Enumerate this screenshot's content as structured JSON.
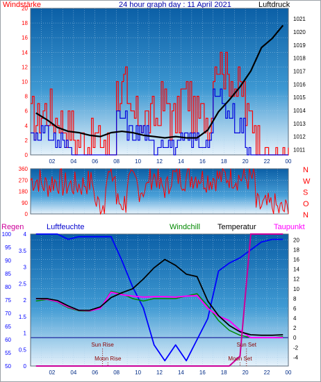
{
  "header": {
    "left": "Windstärke",
    "title": "24 hour graph day : 11 April 2021",
    "right": "Luftdruck"
  },
  "wind_panel": {
    "direction_labels": [
      "N",
      "W",
      "S",
      "O",
      "N"
    ],
    "y_left_ticks": [
      "360",
      "270",
      "180",
      "90",
      "0"
    ]
  },
  "bottom_header": {
    "regen": "Regen",
    "luftfeuchte": "Luftfeuchte",
    "windchill": "Windchill",
    "temperatur": "Temperatur",
    "taupunkt": "Taupunkt"
  },
  "events": {
    "sun_rise": "Sun Rise",
    "sun_set": "Sun Set",
    "moon_rise": "Moon Rise",
    "moon_set": "Moon Set"
  },
  "x_ticks": [
    "02",
    "04",
    "06",
    "08",
    "10",
    "12",
    "14",
    "16",
    "18",
    "20",
    "22",
    "00"
  ],
  "colors": {
    "wind_gust": "#ff0000",
    "wind_avg": "#0000dd",
    "pressure": "#000000",
    "humidity": "#0000ff",
    "temperature": "#000000",
    "windchill": "#008800",
    "dewpoint": "#ff00ff",
    "rain": "#cc0099"
  },
  "chart_data": [
    {
      "type": "line",
      "title": "24 hour graph day : 11 April 2021",
      "ylabel_left": "Windstärke",
      "ylabel_right": "Luftdruck",
      "y_left_ticks": [
        "0",
        "2",
        "4",
        "6",
        "8",
        "10",
        "12",
        "14",
        "16",
        "18",
        "20"
      ],
      "y_right_ticks": [
        "1011",
        "1012",
        "1013",
        "1014",
        "1015",
        "1016",
        "1017",
        "1018",
        "1019",
        "1020",
        "1021"
      ],
      "ylim_left": [
        0,
        20
      ],
      "ylim_right": [
        1010.6,
        1021.8
      ],
      "x": [
        1,
        2,
        3,
        4,
        5,
        6,
        7,
        8,
        9,
        10,
        11,
        12,
        13,
        14,
        15,
        16,
        17,
        18,
        19,
        20,
        21,
        22,
        23,
        24
      ],
      "series": [
        {
          "name": "Luftdruck",
          "axis": "right",
          "values": [
            1013.8,
            1013.3,
            1012.7,
            1012.4,
            1012.3,
            1012.1,
            1012.0,
            1012.3,
            1012.4,
            1012.3,
            1012.1,
            1012.0,
            1011.9,
            1012.0,
            1011.9,
            1011.9,
            1012.5,
            1013.9,
            1014.8,
            1015.8,
            1017.0,
            1018.8,
            1019.5,
            1020.5
          ]
        },
        {
          "name": "Windböen",
          "axis": "left",
          "values": [
            5,
            6,
            5,
            4,
            2,
            2,
            2,
            1,
            9,
            5,
            5,
            5,
            7,
            5,
            8,
            5,
            5,
            13,
            11,
            9,
            5,
            2,
            0,
            0
          ]
        },
        {
          "name": "Wind",
          "axis": "left",
          "values": [
            3,
            3,
            2,
            1,
            0,
            0,
            0,
            0,
            5,
            3,
            3,
            1,
            2,
            1,
            2,
            2,
            2,
            8,
            6,
            4,
            1,
            0,
            0,
            0
          ]
        }
      ]
    },
    {
      "type": "line",
      "ylabel_left": "Windrichtung",
      "y_left_ticks": [
        "0",
        "90",
        "180",
        "270",
        "360"
      ],
      "ylim": [
        0,
        360
      ],
      "direction_labels": [
        "N",
        "W",
        "S",
        "O",
        "N"
      ],
      "x": [
        1,
        2,
        3,
        4,
        5,
        6,
        7,
        8,
        9,
        10,
        11,
        12,
        13,
        14,
        15,
        16,
        17,
        18,
        19,
        20,
        21,
        22,
        23,
        24
      ],
      "series": [
        {
          "name": "Windrichtung",
          "values": [
            270,
            230,
            260,
            230,
            230,
            250,
            80,
            300,
            90,
            250,
            200,
            300,
            210,
            300,
            290,
            300,
            280,
            290,
            300,
            290,
            280,
            60,
            60,
            30
          ]
        }
      ]
    },
    {
      "type": "line",
      "legend": [
        "Regen",
        "Luftfeuchte",
        "Windchill",
        "Temperatur",
        "Taupunkt"
      ],
      "y_regen_ticks": [
        "0",
        "0.5",
        "1",
        "1.5",
        "2",
        "2.5",
        "3",
        "3.5",
        "4"
      ],
      "y_humidity_ticks": [
        "50",
        "55",
        "60",
        "65",
        "70",
        "75",
        "80",
        "85",
        "90",
        "95",
        "100"
      ],
      "y_temp_ticks": [
        "-4",
        "-2",
        "0",
        "2",
        "4",
        "6",
        "8",
        "10",
        "12",
        "14",
        "16",
        "18",
        "20"
      ],
      "ylim_temp": [
        -5.8,
        21.2
      ],
      "x": [
        1,
        2,
        3,
        4,
        5,
        6,
        7,
        8,
        9,
        10,
        11,
        12,
        13,
        14,
        15,
        16,
        17,
        18,
        19,
        20,
        21,
        22,
        23,
        24
      ],
      "series": [
        {
          "name": "Temperatur",
          "values": [
            8.0,
            8.0,
            7.6,
            6.5,
            5.6,
            5.6,
            6.3,
            8.2,
            9.2,
            10.0,
            12.0,
            14.3,
            16.0,
            14.8,
            13.0,
            12.5,
            7.5,
            4.5,
            2.5,
            1.2,
            0.6,
            0.5,
            0.5,
            0.6
          ]
        },
        {
          "name": "Windchill",
          "values": [
            7.5,
            7.8,
            7.3,
            6.1,
            5.5,
            5.4,
            6.0,
            9.5,
            9.0,
            8.0,
            7.5,
            8.0,
            8.0,
            8.0,
            8.5,
            9.0,
            6.5,
            3.5,
            1.5,
            0.5,
            0.0,
            0.0,
            0.0,
            0.2
          ]
        },
        {
          "name": "Taupunkt",
          "values": [
            8.0,
            7.9,
            7.4,
            6.3,
            5.6,
            5.5,
            6.0,
            9.3,
            8.8,
            8.5,
            8.3,
            8.4,
            8.4,
            8.3,
            8.5,
            8.6,
            6.0,
            4.4,
            3.5,
            1.5,
            0.0,
            0.0,
            0.0,
            0.0
          ]
        },
        {
          "name": "Luftfeuchte",
          "values": [
            100,
            100,
            100,
            98,
            99,
            99,
            99,
            99,
            90,
            80,
            72,
            58,
            52,
            58,
            52,
            60,
            68,
            86,
            89,
            91,
            94,
            97,
            98,
            98
          ]
        },
        {
          "name": "Regen",
          "values": [
            0,
            0,
            0,
            0,
            0,
            0,
            0,
            0,
            0,
            0,
            0,
            0,
            0,
            0,
            0,
            0,
            0,
            0,
            0,
            0.3,
            4.0,
            4.0,
            4.0,
            4.0
          ]
        }
      ]
    }
  ]
}
